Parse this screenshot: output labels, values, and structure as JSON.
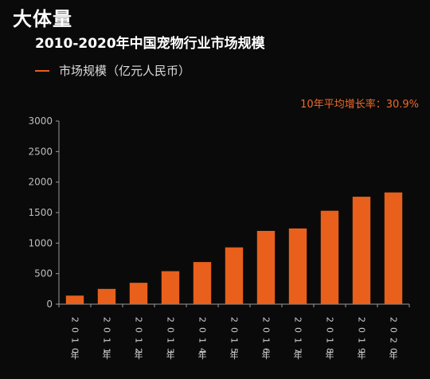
{
  "header": {
    "heading": "大体量",
    "chart_title": "2010-2020年中国宠物行业市场规模"
  },
  "legend": {
    "label": "市场规模（亿元人民币）"
  },
  "annotation": "10年平均增长率：30.9%",
  "colors": {
    "bar": "#e8601c",
    "accent": "#ee6a2a",
    "background": "#0a0a0a"
  },
  "chart_data": {
    "type": "bar",
    "title": "2010-2020年中国宠物行业市场规模",
    "categories": [
      "2010年",
      "2011年",
      "2012年",
      "2013年",
      "2014年",
      "2015年",
      "2016年",
      "2017年",
      "2018年",
      "2019年",
      "2020年"
    ],
    "series": [
      {
        "name": "市场规模（亿元人民币）",
        "values": [
          140,
          250,
          350,
          540,
          690,
          930,
          1200,
          1240,
          1530,
          1760,
          1830
        ]
      }
    ],
    "ylim": [
      0,
      3000
    ],
    "yticks": [
      0,
      500,
      1000,
      1500,
      2000,
      2500,
      3000
    ],
    "grid": false,
    "legend_position": "top-left"
  }
}
